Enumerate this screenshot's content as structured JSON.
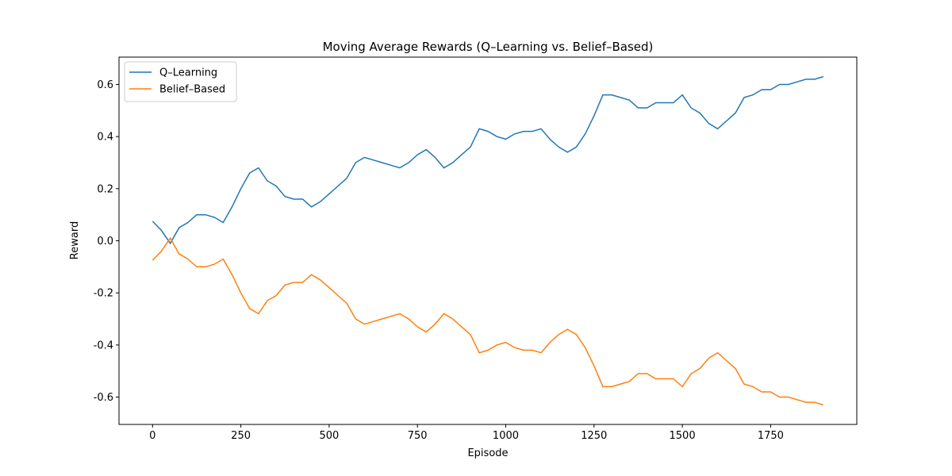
{
  "chart_data": {
    "type": "line",
    "title": "Moving Average Rewards (Q–Learning vs. Belief–Based)",
    "x_label": "Episode",
    "y_label": "Reward",
    "x": [
      0,
      25,
      50,
      75,
      100,
      125,
      150,
      175,
      200,
      225,
      250,
      275,
      300,
      325,
      350,
      375,
      400,
      425,
      450,
      475,
      500,
      525,
      550,
      575,
      600,
      625,
      650,
      675,
      700,
      725,
      750,
      775,
      800,
      825,
      850,
      875,
      900,
      925,
      950,
      975,
      1000,
      1025,
      1050,
      1075,
      1100,
      1125,
      1150,
      1175,
      1200,
      1225,
      1250,
      1275,
      1300,
      1325,
      1350,
      1375,
      1400,
      1425,
      1450,
      1475,
      1500,
      1525,
      1550,
      1575,
      1600,
      1625,
      1650,
      1675,
      1700,
      1725,
      1750,
      1775,
      1800,
      1825,
      1850,
      1875,
      1899
    ],
    "series": [
      {
        "name": "Q–Learning",
        "color": "#1f77b4",
        "values": [
          0.075,
          0.04,
          -0.01,
          0.05,
          0.07,
          0.1,
          0.1,
          0.09,
          0.07,
          0.13,
          0.2,
          0.26,
          0.28,
          0.23,
          0.21,
          0.17,
          0.16,
          0.16,
          0.13,
          0.15,
          0.18,
          0.21,
          0.24,
          0.3,
          0.32,
          0.31,
          0.3,
          0.29,
          0.28,
          0.3,
          0.33,
          0.35,
          0.32,
          0.28,
          0.3,
          0.33,
          0.36,
          0.43,
          0.42,
          0.4,
          0.39,
          0.41,
          0.42,
          0.42,
          0.43,
          0.39,
          0.36,
          0.34,
          0.36,
          0.41,
          0.48,
          0.56,
          0.56,
          0.55,
          0.54,
          0.51,
          0.51,
          0.53,
          0.53,
          0.53,
          0.56,
          0.51,
          0.49,
          0.45,
          0.43,
          0.46,
          0.49,
          0.55,
          0.56,
          0.58,
          0.58,
          0.6,
          0.6,
          0.61,
          0.62,
          0.62,
          0.63
        ]
      },
      {
        "name": "Belief–Based",
        "color": "#ff7f0e",
        "values": [
          -0.075,
          -0.04,
          0.01,
          -0.05,
          -0.07,
          -0.1,
          -0.1,
          -0.09,
          -0.07,
          -0.13,
          -0.2,
          -0.26,
          -0.28,
          -0.23,
          -0.21,
          -0.17,
          -0.16,
          -0.16,
          -0.13,
          -0.15,
          -0.18,
          -0.21,
          -0.24,
          -0.3,
          -0.32,
          -0.31,
          -0.3,
          -0.29,
          -0.28,
          -0.3,
          -0.33,
          -0.35,
          -0.32,
          -0.28,
          -0.3,
          -0.33,
          -0.36,
          -0.43,
          -0.42,
          -0.4,
          -0.39,
          -0.41,
          -0.42,
          -0.42,
          -0.43,
          -0.39,
          -0.36,
          -0.34,
          -0.36,
          -0.41,
          -0.48,
          -0.56,
          -0.56,
          -0.55,
          -0.54,
          -0.51,
          -0.51,
          -0.53,
          -0.53,
          -0.53,
          -0.56,
          -0.51,
          -0.49,
          -0.45,
          -0.43,
          -0.46,
          -0.49,
          -0.55,
          -0.56,
          -0.58,
          -0.58,
          -0.6,
          -0.6,
          -0.61,
          -0.62,
          -0.62,
          -0.63
        ]
      }
    ],
    "xlim": [
      -95,
      1994
    ],
    "xticks": [
      0,
      250,
      500,
      750,
      1000,
      1250,
      1500,
      1750
    ],
    "ylim": [
      -0.705,
      0.705
    ],
    "yticks": [
      -0.6,
      -0.4,
      -0.2,
      {
        "value": 0,
        "label": "0.0"
      },
      0.2,
      0.4,
      0.6
    ],
    "legend": "upper left",
    "grid": false
  }
}
